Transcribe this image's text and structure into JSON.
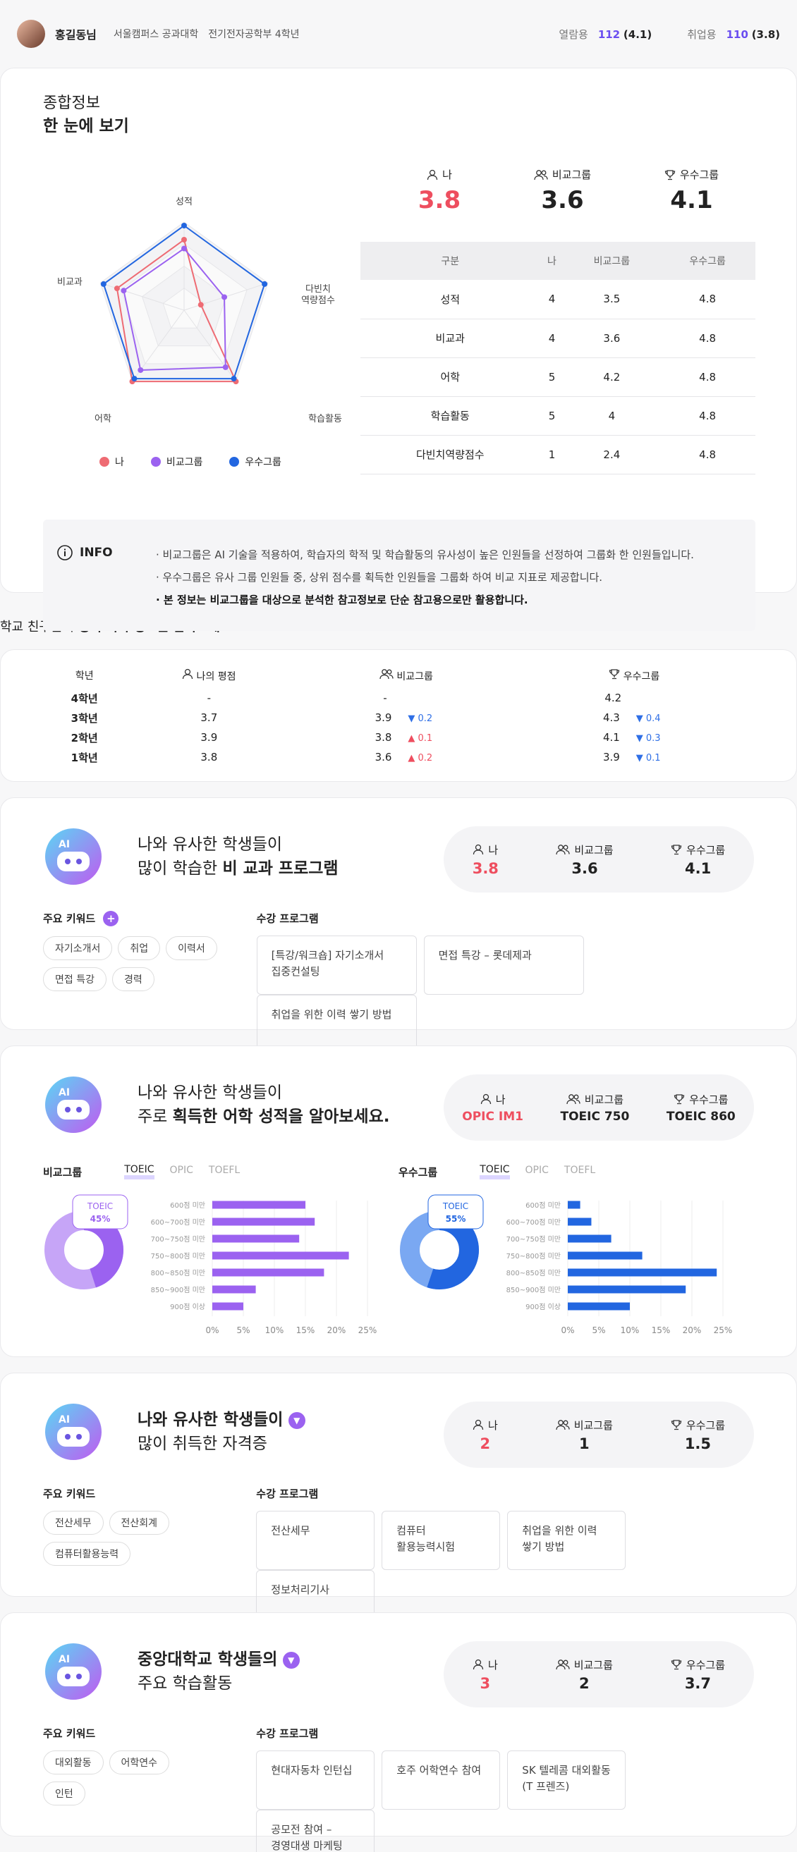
{
  "user": {
    "name": "홍길동님",
    "school": "서울캠퍼스 공과대학",
    "dept": "전기전자공학부 4학년"
  },
  "stats": {
    "view_label": "열람용",
    "view_value": "112",
    "view_sub": "(4.1)",
    "job_label": "취업용",
    "job_value": "110",
    "job_sub": "(3.8)"
  },
  "summary": {
    "title1": "종합정보",
    "title2": "한 눈에 보기",
    "axes": [
      "성적",
      "다빈치\n역량점수",
      "학습활동",
      "어학",
      "비교과"
    ],
    "legend": [
      {
        "label": "나",
        "color": "#ee6b73"
      },
      {
        "label": "비교그룹",
        "color": "#9b62f0"
      },
      {
        "label": "우수그룹",
        "color": "#2266e0"
      }
    ],
    "scores": [
      {
        "label": "나",
        "value": "3.8"
      },
      {
        "label": "비교그룹",
        "value": "3.6"
      },
      {
        "label": "우수그룹",
        "value": "4.1"
      }
    ],
    "table_head": [
      "구분",
      "나",
      "비교그룹",
      "우수그룹"
    ],
    "rows": [
      [
        "성적",
        "4",
        "3.5",
        "4.8"
      ],
      [
        "비교과",
        "4",
        "3.6",
        "4.8"
      ],
      [
        "어학",
        "5",
        "4.2",
        "4.8"
      ],
      [
        "학습활동",
        "5",
        "4",
        "4.8"
      ],
      [
        "다빈치역량점수",
        "1",
        "2.4",
        "4.8"
      ]
    ]
  },
  "info": {
    "title": "INFO",
    "lines": [
      "비교그룹은 AI 기술을 적용하여, 학습자의 학적 및 학습활동의 유사성이 높은 인원들을 선정하여 그룹화 한 인원들입니다.",
      "우수그룹은 유사 그룹 인원들 중, 상위 점수를 획득한 인원들을 그룹화 하여 비교 지표로 제공합니다."
    ],
    "strong": "본 정보는 비교그룹을 대상으로 분석한 참고정보로 단순 참고용으로만 활용합니다."
  },
  "grades": {
    "title_a": "학교 친구들의 ",
    "title_b": "성적 획득 정보를 알아보세요.",
    "head": [
      "학년",
      "나의 평점",
      "비교그룹",
      "우수그룹"
    ],
    "rows": [
      {
        "y": "4학년",
        "me": "-",
        "cmp": "-",
        "cd": "",
        "cdir": "",
        "top": "4.2",
        "td": "",
        "tdir": ""
      },
      {
        "y": "3학년",
        "me": "3.7",
        "cmp": "3.9",
        "cd": "0.2",
        "cdir": "dn",
        "top": "4.3",
        "td": "0.4",
        "tdir": "dn"
      },
      {
        "y": "2학년",
        "me": "3.9",
        "cmp": "3.8",
        "cd": "0.1",
        "cdir": "up",
        "top": "4.1",
        "td": "0.3",
        "tdir": "dn"
      },
      {
        "y": "1학년",
        "me": "3.8",
        "cmp": "3.6",
        "cd": "0.2",
        "cdir": "up",
        "top": "3.9",
        "td": "0.1",
        "tdir": "dn"
      }
    ]
  },
  "p1": {
    "l1": "나와 유사한 학생들이",
    "l2a": "많이 학습한 ",
    "l2b": "비 교과 프로그램",
    "scores": [
      "3.8",
      "3.6",
      "4.1"
    ],
    "kw_label": "주요 키워드",
    "kws": [
      "자기소개서",
      "취업",
      "이력서",
      "면접 특강",
      "경력"
    ],
    "prog_label": "수강 프로그램",
    "progs": [
      "[특강/워크숍] 자기소개서\n집중컨설팅",
      "면접 특강 – 롯데제과",
      "취업을 위한 이력 쌓기 방법"
    ]
  },
  "p2": {
    "l1": "나와 유사한 학생들이",
    "l2a": "주로 ",
    "l2b": "획득한 어학 성적을 알아보세요.",
    "scores": [
      "OPIC IM1",
      "TOEIC 750",
      "TOEIC 860"
    ],
    "left": {
      "title": "비교그룹",
      "tabs": [
        "TOEIC",
        "OPIC",
        "TOEFL"
      ],
      "donut_label": "TOEIC",
      "donut_pct": "45%"
    },
    "right": {
      "title": "우수그룹",
      "tabs": [
        "TOEIC",
        "OPIC",
        "TOEFL"
      ],
      "donut_label": "TOEIC",
      "donut_pct": "55%"
    }
  },
  "chart_data": [
    {
      "type": "bar",
      "title": "비교그룹",
      "categories": [
        "600점 미만",
        "600~700점 미만",
        "700~750점 미만",
        "750~800점 미만",
        "800~850점 미만",
        "850~900점 미만",
        "900점 이상"
      ],
      "values": [
        15,
        16.5,
        14,
        22,
        18,
        7,
        5
      ],
      "xlim": [
        0,
        25
      ],
      "ticks": [
        "0%",
        "5%",
        "10%",
        "15%",
        "20%",
        "25%"
      ]
    },
    {
      "type": "bar",
      "title": "우수그룹",
      "categories": [
        "600점 미만",
        "600~700점 미만",
        "700~750점 미만",
        "750~800점 미만",
        "800~850점 미만",
        "850~900점 미만",
        "900점 이상"
      ],
      "values": [
        2,
        3.8,
        7,
        12,
        24,
        19,
        10
      ],
      "xlim": [
        0,
        25
      ],
      "ticks": [
        "0%",
        "5%",
        "10%",
        "15%",
        "20%",
        "25%"
      ]
    }
  ],
  "p3": {
    "l1": "나와 유사한 학생들이",
    "l2": "많이 취득한 자격증",
    "scores": [
      "2",
      "1",
      "1.5"
    ],
    "kw_label": "주요 키워드",
    "kws": [
      "전산세무",
      "전산회계",
      "컴퓨터활용능력"
    ],
    "prog_label": "수강 프로그램",
    "progs": [
      "전산세무",
      "컴퓨터\n활용능력시험",
      "취업을 위한 이력\n쌓기 방법",
      "정보처리기사"
    ]
  },
  "p4": {
    "l1": "중앙대학교 학생들의",
    "l2": "주요 학습활동",
    "scores": [
      "3",
      "2",
      "3.7"
    ],
    "kw_label": "주요 키워드",
    "kws": [
      "대외활동",
      "어학연수",
      "인턴"
    ],
    "prog_label": "수강 프로그램",
    "progs": [
      "현대자동차 인턴십",
      "호주 어학연수 참여",
      "SK 텔레콤 대외활동\n(T 프렌즈)",
      "공모전 참여 –\n경영대생 마케팅"
    ]
  },
  "labels": {
    "me": "나",
    "cmp": "비교그룹",
    "top": "우수그룹"
  }
}
